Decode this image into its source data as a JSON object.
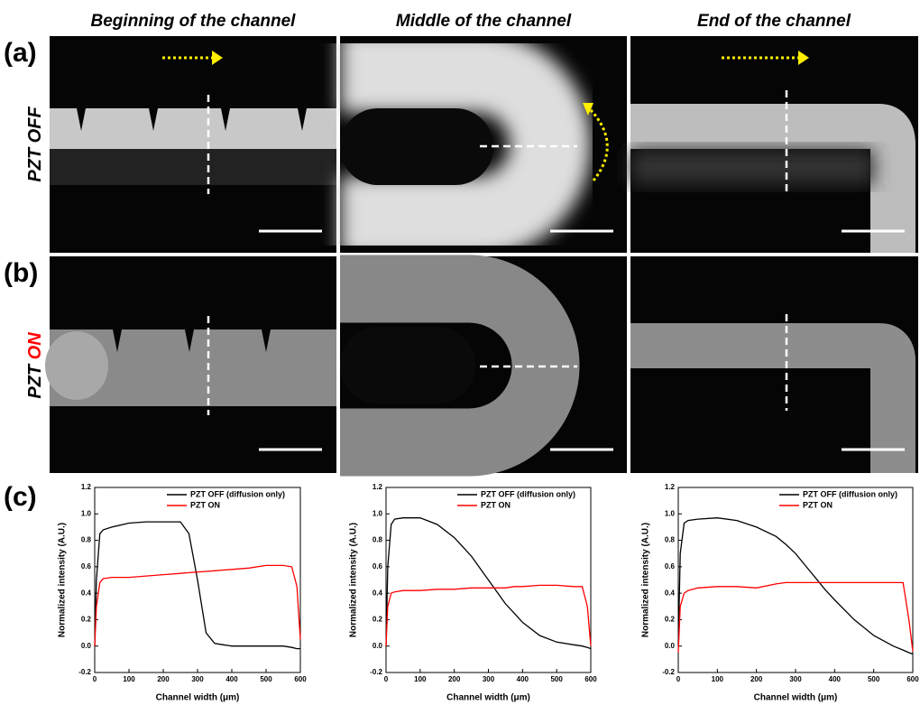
{
  "figure": {
    "columns": [
      "Beginning of the channel",
      "Middle of the channel",
      "End of the channel"
    ],
    "panels": [
      "(a)",
      "(b)",
      "(c)"
    ],
    "rows": [
      {
        "prefix": "PZT",
        "state": "OFF",
        "state_color": "#000000"
      },
      {
        "prefix": "PZT",
        "state": "ON",
        "state_color": "#ff0000"
      }
    ]
  },
  "chart_data": [
    {
      "type": "line",
      "xlabel": "Channel width (μm)",
      "ylabel": "Normalized intensity (A.U.)",
      "x": [
        0,
        5,
        15,
        25,
        50,
        100,
        150,
        200,
        250,
        275,
        300,
        325,
        350,
        375,
        400,
        450,
        500,
        550,
        575,
        590,
        600
      ],
      "series": [
        {
          "name": "PZT OFF (diffusion only)",
          "color": "#000000",
          "values": [
            0,
            0.5,
            0.85,
            0.88,
            0.9,
            0.93,
            0.94,
            0.94,
            0.94,
            0.85,
            0.5,
            0.1,
            0.02,
            0.01,
            0,
            0,
            0,
            0,
            -0.01,
            -0.02,
            -0.02
          ]
        },
        {
          "name": "PZT ON",
          "color": "#ff0000",
          "values": [
            0,
            0.3,
            0.48,
            0.51,
            0.52,
            0.52,
            0.53,
            0.54,
            0.55,
            0.555,
            0.56,
            0.565,
            0.57,
            0.575,
            0.58,
            0.59,
            0.61,
            0.61,
            0.6,
            0.45,
            0.05
          ]
        }
      ],
      "xlim": [
        0,
        600
      ],
      "xticks": [
        0,
        100,
        200,
        300,
        400,
        500,
        600
      ],
      "ylim": [
        -0.2,
        1.2
      ],
      "yticks": [
        -0.2,
        {
          "value": 0,
          "label": "0.0"
        },
        0.2,
        0.4,
        0.6,
        0.8,
        {
          "value": 1,
          "label": "1.0"
        },
        1.2
      ],
      "legend": "upper right"
    },
    {
      "type": "line",
      "xlabel": "Channel width (μm)",
      "ylabel": "Normalized intensity (A.U.)",
      "x": [
        0,
        5,
        15,
        25,
        50,
        100,
        150,
        200,
        250,
        275,
        300,
        325,
        350,
        375,
        400,
        450,
        500,
        550,
        575,
        590,
        600
      ],
      "series": [
        {
          "name": "PZT OFF (diffusion only)",
          "color": "#000000",
          "values": [
            0,
            0.6,
            0.92,
            0.96,
            0.97,
            0.97,
            0.92,
            0.82,
            0.68,
            0.59,
            0.5,
            0.41,
            0.32,
            0.25,
            0.18,
            0.08,
            0.03,
            0.01,
            0,
            -0.01,
            -0.02
          ]
        },
        {
          "name": "PZT ON",
          "color": "#ff0000",
          "values": [
            0,
            0.3,
            0.4,
            0.41,
            0.42,
            0.42,
            0.43,
            0.43,
            0.44,
            0.44,
            0.44,
            0.44,
            0.44,
            0.45,
            0.45,
            0.46,
            0.46,
            0.45,
            0.45,
            0.3,
            0
          ]
        }
      ],
      "xlim": [
        0,
        600
      ],
      "xticks": [
        0,
        100,
        200,
        300,
        400,
        500,
        600
      ],
      "ylim": [
        -0.2,
        1.2
      ],
      "yticks": [
        -0.2,
        {
          "value": 0,
          "label": "0.0"
        },
        0.2,
        0.4,
        0.6,
        0.8,
        {
          "value": 1,
          "label": "1.0"
        },
        1.2
      ],
      "legend": "upper right"
    },
    {
      "type": "line",
      "xlabel": "Channel width (μm)",
      "ylabel": "Normalized intensity (A.U.)",
      "x": [
        0,
        5,
        15,
        25,
        50,
        100,
        150,
        200,
        250,
        275,
        300,
        325,
        350,
        375,
        400,
        450,
        500,
        550,
        575,
        590,
        600
      ],
      "series": [
        {
          "name": "PZT OFF (diffusion only)",
          "color": "#000000",
          "values": [
            0,
            0.7,
            0.93,
            0.95,
            0.96,
            0.97,
            0.95,
            0.9,
            0.83,
            0.77,
            0.7,
            0.61,
            0.52,
            0.43,
            0.35,
            0.2,
            0.08,
            0,
            -0.03,
            -0.05,
            -0.06
          ]
        },
        {
          "name": "PZT ON",
          "color": "#ff0000",
          "values": [
            -0.05,
            0.3,
            0.4,
            0.42,
            0.44,
            0.45,
            0.45,
            0.44,
            0.47,
            0.48,
            0.48,
            0.48,
            0.48,
            0.48,
            0.48,
            0.48,
            0.48,
            0.48,
            0.48,
            0.2,
            -0.04
          ]
        }
      ],
      "xlim": [
        0,
        600
      ],
      "xticks": [
        0,
        100,
        200,
        300,
        400,
        500,
        600
      ],
      "ylim": [
        -0.2,
        1.2
      ],
      "yticks": [
        -0.2,
        {
          "value": 0,
          "label": "0.0"
        },
        0.2,
        0.4,
        0.6,
        0.8,
        {
          "value": 1,
          "label": "1.0"
        },
        1.2
      ],
      "legend": "upper right"
    }
  ]
}
